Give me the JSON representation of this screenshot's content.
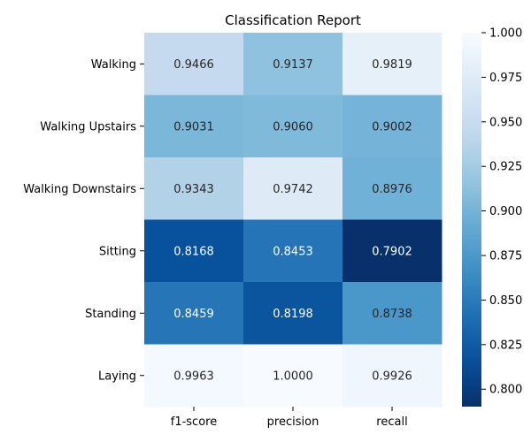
{
  "chart_data": {
    "type": "heatmap",
    "title": "Classification Report",
    "xlabel": "",
    "ylabel": "",
    "columns": [
      "f1-score",
      "precision",
      "recall"
    ],
    "rows": [
      "Walking",
      "Walking Upstairs",
      "Walking Downstairs",
      "Sitting",
      "Standing",
      "Laying"
    ],
    "values": [
      [
        0.9466,
        0.9137,
        0.9819
      ],
      [
        0.9031,
        0.906,
        0.9002
      ],
      [
        0.9343,
        0.9742,
        0.8976
      ],
      [
        0.8168,
        0.8453,
        0.7902
      ],
      [
        0.8459,
        0.8198,
        0.8738
      ],
      [
        0.9963,
        1.0,
        0.9926
      ]
    ],
    "cell_labels": [
      [
        "0.9466",
        "0.9137",
        "0.9819"
      ],
      [
        "0.9031",
        "0.9060",
        "0.9002"
      ],
      [
        "0.9343",
        "0.9742",
        "0.8976"
      ],
      [
        "0.8168",
        "0.8453",
        "0.7902"
      ],
      [
        "0.8459",
        "0.8198",
        "0.8738"
      ],
      [
        "0.9963",
        "1.0000",
        "0.9926"
      ]
    ],
    "colormap": "Blues_r",
    "vmin": 0.7902,
    "vmax": 1.0,
    "colorbar_ticks": [
      0.8,
      0.825,
      0.85,
      0.875,
      0.9,
      0.925,
      0.95,
      0.975,
      1.0
    ],
    "colorbar_tick_labels": [
      "0.800",
      "0.825",
      "0.850",
      "0.875",
      "0.900",
      "0.925",
      "0.950",
      "0.975",
      "1.000"
    ],
    "colorbar_placement": "right",
    "grid": false
  }
}
